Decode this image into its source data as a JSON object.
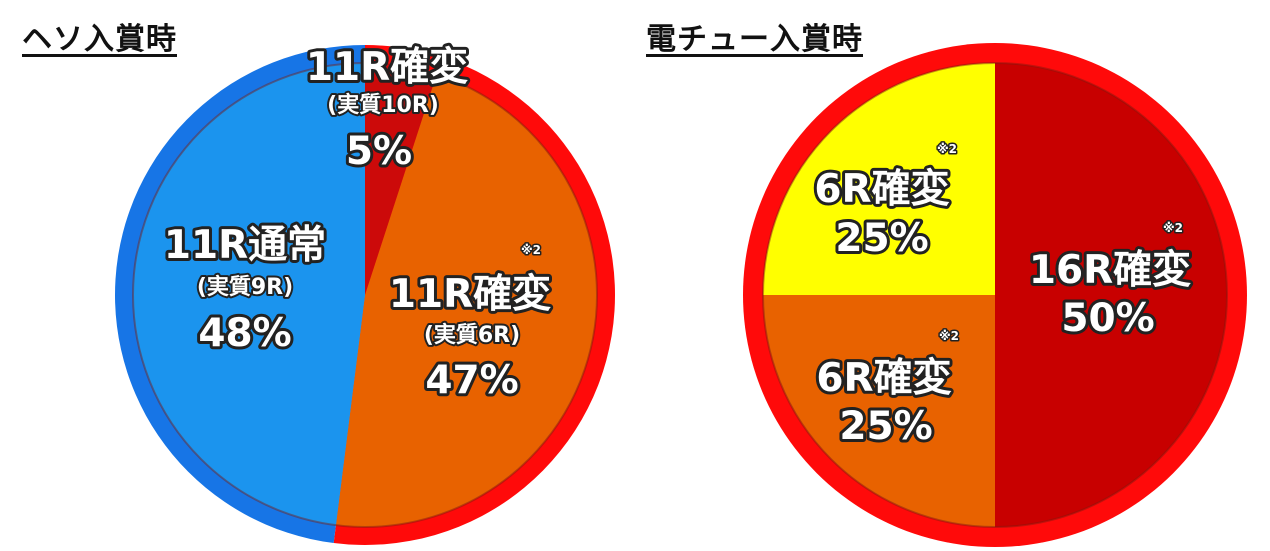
{
  "chart_data": [
    {
      "type": "pie",
      "title": "ヘソ入賞時",
      "slices": [
        {
          "label": "11R確変",
          "sublabel": "(実質10R)",
          "percent_text": "5%",
          "value": 5,
          "color": "#cc0a0a",
          "note": ""
        },
        {
          "label": "11R確変",
          "sublabel": "(実質6R)",
          "percent_text": "47%",
          "value": 47,
          "color": "#e86200",
          "note": "※2"
        },
        {
          "label": "11R通常",
          "sublabel": "(実質9R)",
          "percent_text": "48%",
          "value": 48,
          "color": "#1b94ee",
          "note": ""
        }
      ],
      "rim": [
        {
          "from_percent": 0,
          "to_percent": 52,
          "color": "#ff0a0a"
        },
        {
          "from_percent": 52,
          "to_percent": 100,
          "color": "#1775e6"
        }
      ]
    },
    {
      "type": "pie",
      "title": "電チュー入賞時",
      "slices": [
        {
          "label": "16R確変",
          "sublabel": "",
          "percent_text": "50%",
          "value": 50,
          "color": "#c80000",
          "note": "※2"
        },
        {
          "label": "6R確変",
          "sublabel": "",
          "percent_text": "25%",
          "value": 25,
          "color": "#e86200",
          "note": "※2"
        },
        {
          "label": "6R確変",
          "sublabel": "",
          "percent_text": "25%",
          "value": 25,
          "color": "#ffff00",
          "note": "※2"
        }
      ],
      "rim": [
        {
          "from_percent": 0,
          "to_percent": 100,
          "color": "#ff0a0a"
        }
      ]
    }
  ]
}
